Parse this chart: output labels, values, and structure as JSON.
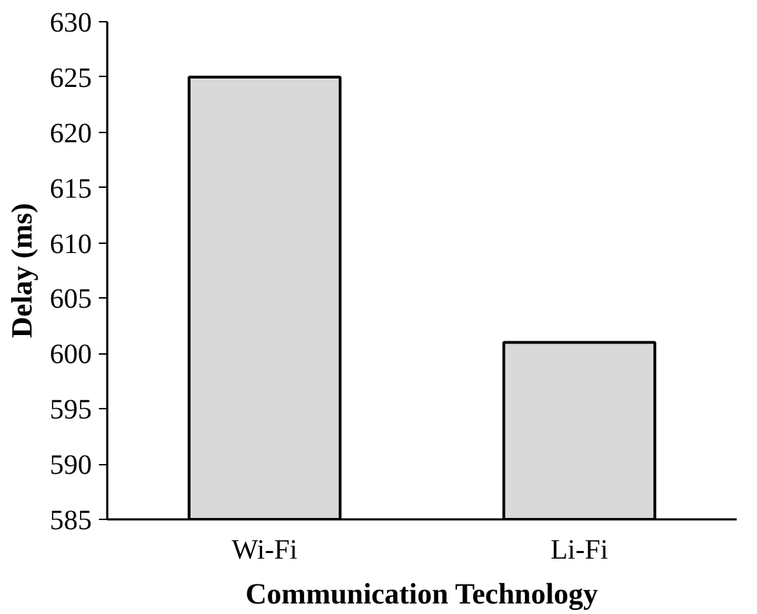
{
  "chart_data": {
    "type": "bar",
    "xlabel": "Communication Technology",
    "ylabel": "Delay (ms)",
    "categories": [
      "Wi-Fi",
      "Li-Fi"
    ],
    "values": [
      625,
      601
    ],
    "color": "#d9d9d9",
    "ylim": [
      585,
      630
    ],
    "yticks": [
      585,
      590,
      595,
      600,
      605,
      610,
      615,
      620,
      625,
      630
    ],
    "grid": false
  }
}
